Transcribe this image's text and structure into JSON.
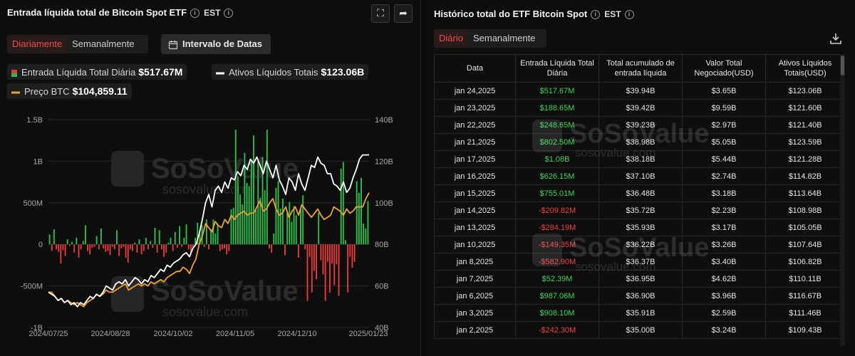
{
  "left": {
    "title": "Entrada líquida total de Bitcoin Spot ETF",
    "tz": "EST",
    "tabs": {
      "active": "Diariamente",
      "inactive": "Semanalmente"
    },
    "range_button": "Intervalo de Datas",
    "legend": {
      "inflow_label": "Entrada Líquida Total Diária",
      "inflow_value": "$517.67M",
      "assets_label": "Ativos Líquidos Totais",
      "assets_value": "$123.06B",
      "btc_label": "Preço BTC",
      "btc_value": "$104,859.11"
    },
    "watermark": {
      "brand": "SoSoValue",
      "url": "sosovalue.com"
    }
  },
  "colors": {
    "positive": "#2fb84a",
    "negative": "#e03a3a",
    "assets_line": "#ffffff",
    "btc_line": "#f0a22e"
  },
  "chart_data": {
    "type": "bar",
    "x_ticks": [
      "2024/07/25",
      "2024/08/28",
      "2024/10/02",
      "2024/11/05",
      "2024/12/10",
      "2025/01/23"
    ],
    "y_left_ticks": [
      "1.5B",
      "1B",
      "500M",
      "0",
      "-500M",
      "-1B"
    ],
    "y_left_range": [
      -1000,
      1500
    ],
    "y_right_ticks": [
      "140B",
      "120B",
      "100B",
      "80B",
      "60B",
      "40B"
    ],
    "y_right_range": [
      40,
      140
    ],
    "series": [
      {
        "name": "Entrada Líquida Total Diária",
        "unit": "M USD",
        "values": [
          120,
          -80,
          180,
          -60,
          -90,
          -230,
          -70,
          -140,
          60,
          -20,
          30,
          -100,
          80,
          -160,
          -60,
          40,
          230,
          -80,
          -120,
          -40,
          -30,
          100,
          -60,
          190,
          -50,
          -90,
          -80,
          -130,
          -30,
          -60,
          170,
          -140,
          -50,
          -30,
          -160,
          -220,
          -60,
          -80,
          20,
          -100,
          60,
          -120,
          -80,
          80,
          -60,
          40,
          -40,
          200,
          -100,
          170,
          -60,
          -150,
          -100,
          20,
          80,
          -80,
          150,
          -40,
          220,
          -30,
          80,
          240,
          -60,
          -90,
          -40,
          80,
          260,
          120,
          230,
          -30,
          300,
          -60,
          180,
          300,
          130,
          250,
          -80,
          -60,
          -50,
          -120,
          -80,
          420,
          440,
          1380,
          820,
          600,
          480,
          1100,
          740,
          700,
          1010,
          1310,
          420,
          1000,
          560,
          1050,
          650,
          1380,
          -50,
          -100,
          130,
          680,
          760,
          430,
          550,
          -130,
          400,
          510,
          270,
          460,
          350,
          -160,
          420,
          590,
          -60,
          -680,
          -150,
          -580,
          -320,
          -420,
          380,
          -190,
          -360,
          -680,
          -210,
          -580,
          -230,
          -490,
          -240,
          -620,
          910,
          990,
          50,
          -580,
          -150,
          -280,
          -210,
          760,
          620,
          800,
          250,
          190,
          520
        ]
      },
      {
        "name": "Ativos Líquidos Totais",
        "unit": "B USD",
        "values": [
          57,
          56,
          55,
          53,
          54,
          52,
          53,
          51,
          52,
          50,
          52,
          51,
          53,
          55,
          54,
          56,
          55,
          57,
          60,
          59,
          58,
          61,
          62,
          61,
          63,
          60,
          62,
          64,
          63,
          61,
          63,
          62,
          65,
          64,
          66,
          68,
          67,
          70,
          69,
          71,
          72,
          73,
          75,
          76,
          74,
          78,
          80,
          85,
          92,
          100,
          104,
          98,
          106,
          108,
          105,
          110,
          107,
          112,
          111,
          115,
          113,
          118,
          116,
          121,
          119,
          122,
          118,
          114,
          120,
          116,
          112,
          118,
          111,
          108,
          104,
          112,
          110,
          106,
          114,
          109,
          106,
          112,
          118,
          117,
          122,
          119,
          118,
          114,
          114,
          109,
          108,
          106,
          110,
          105,
          107,
          112,
          116,
          121,
          123,
          123,
          123.06
        ]
      },
      {
        "name": "Preço BTC",
        "unit": "BTC price",
        "values": [
          57,
          57,
          55,
          53,
          54,
          52,
          53,
          52,
          51,
          52,
          51,
          50,
          52,
          53,
          54,
          56,
          55,
          56,
          58,
          57,
          57,
          58,
          59,
          60,
          61,
          58,
          59,
          60,
          61,
          60,
          61,
          60,
          62,
          61,
          62,
          63,
          62,
          64,
          65,
          66,
          67,
          67,
          69,
          68,
          66,
          70,
          73,
          80,
          84,
          90,
          88,
          86,
          91,
          89,
          88,
          92,
          90,
          94,
          92,
          94,
          95,
          96,
          94,
          95,
          95,
          98,
          101,
          96,
          97,
          100,
          102,
          97,
          94,
          95,
          98,
          93,
          96,
          98,
          94,
          99,
          97,
          95,
          93,
          95,
          97,
          94,
          92,
          93,
          94,
          98,
          97,
          96,
          94,
          97,
          95,
          96,
          98,
          98,
          98,
          102,
          104.86
        ]
      }
    ]
  },
  "right": {
    "title": "Histórico total do ETF Bitcoin Spot",
    "tz": "EST",
    "tabs": {
      "active": "Diário",
      "inactive": "Semanalmente"
    },
    "columns": [
      "Data",
      "Entrada Líquida Total Diária",
      "Total acumulado de entrada líquida",
      "Valor Total Negociado(USD)",
      "Ativos Líquidos Totais(USD)"
    ],
    "rows": [
      {
        "date": "jan 24,2025",
        "inflow": "$517.67M",
        "sign": "pos",
        "cumulative": "$39.94B",
        "traded": "$3.65B",
        "assets": "$123.06B"
      },
      {
        "date": "jan 23,2025",
        "inflow": "$188.65M",
        "sign": "pos",
        "cumulative": "$39.42B",
        "traded": "$9.59B",
        "assets": "$121.60B"
      },
      {
        "date": "jan 22,2025",
        "inflow": "$248.65M",
        "sign": "pos",
        "cumulative": "$39.23B",
        "traded": "$2.97B",
        "assets": "$121.40B"
      },
      {
        "date": "jan 21,2025",
        "inflow": "$802.50M",
        "sign": "pos",
        "cumulative": "$38.98B",
        "traded": "$5.05B",
        "assets": "$123.59B"
      },
      {
        "date": "jan 17,2025",
        "inflow": "$1.08B",
        "sign": "pos",
        "cumulative": "$38.18B",
        "traded": "$5.44B",
        "assets": "$121.28B"
      },
      {
        "date": "jan 16,2025",
        "inflow": "$626.15M",
        "sign": "pos",
        "cumulative": "$37.10B",
        "traded": "$2.74B",
        "assets": "$114.82B"
      },
      {
        "date": "jan 15,2025",
        "inflow": "$755.01M",
        "sign": "pos",
        "cumulative": "$36.48B",
        "traded": "$3.18B",
        "assets": "$113.64B"
      },
      {
        "date": "jan 14,2025",
        "inflow": "-$209.82M",
        "sign": "neg",
        "cumulative": "$35.72B",
        "traded": "$2.23B",
        "assets": "$108.98B"
      },
      {
        "date": "jan 13,2025",
        "inflow": "-$284.19M",
        "sign": "neg",
        "cumulative": "$35.93B",
        "traded": "$3.17B",
        "assets": "$105.05B"
      },
      {
        "date": "jan 10,2025",
        "inflow": "-$149.35M",
        "sign": "neg",
        "cumulative": "$36.22B",
        "traded": "$3.26B",
        "assets": "$107.64B"
      },
      {
        "date": "jan 8,2025",
        "inflow": "-$582.90M",
        "sign": "neg",
        "cumulative": "$36.37B",
        "traded": "$3.40B",
        "assets": "$106.82B"
      },
      {
        "date": "jan 7,2025",
        "inflow": "$52.39M",
        "sign": "pos",
        "cumulative": "$36.95B",
        "traded": "$4.62B",
        "assets": "$110.11B"
      },
      {
        "date": "jan 6,2025",
        "inflow": "$987.06M",
        "sign": "pos",
        "cumulative": "$36.90B",
        "traded": "$3.96B",
        "assets": "$116.67B"
      },
      {
        "date": "jan 3,2025",
        "inflow": "$908.10M",
        "sign": "pos",
        "cumulative": "$35.91B",
        "traded": "$2.59B",
        "assets": "$111.46B"
      },
      {
        "date": "jan 2,2025",
        "inflow": "-$242.30M",
        "sign": "neg",
        "cumulative": "$35.00B",
        "traded": "$3.24B",
        "assets": "$109.43B"
      }
    ],
    "watermark": {
      "brand": "SoSoValue",
      "url": "sosovalue.com"
    }
  }
}
